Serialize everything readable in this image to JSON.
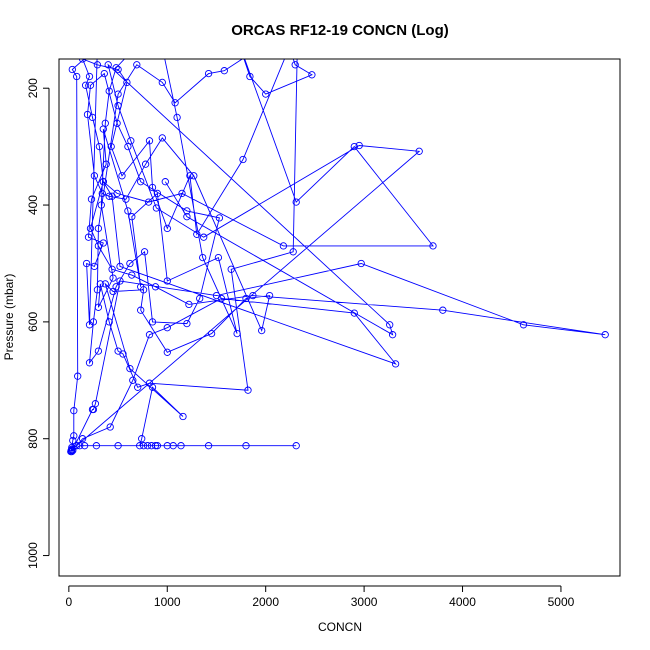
{
  "chart_data": {
    "type": "line",
    "title": "ORCAS RF12-19 CONCN (Log)",
    "xlabel": "CONCN",
    "ylabel": "Pressure (mbar)",
    "xlim": [
      -100,
      5600
    ],
    "ylim": [
      1035,
      150
    ],
    "y_reversed": true,
    "x_ticks": [
      0,
      1000,
      2000,
      3000,
      4000,
      5000
    ],
    "x_tick_labels": [
      "0",
      "1000",
      "2000",
      "3000",
      "4000",
      "5000"
    ],
    "y_ticks": [
      200,
      400,
      600,
      800,
      1000
    ],
    "y_tick_labels": [
      "200",
      "400",
      "600",
      "800",
      "1000"
    ],
    "grid": false,
    "line_color": "#0000ff",
    "marker": "open-circle",
    "series": [
      {
        "points": [
          [
            20,
            822
          ],
          [
            25,
            820
          ],
          [
            30,
            818
          ],
          [
            40,
            803
          ],
          [
            50,
            795
          ],
          [
            50,
            752
          ],
          [
            90,
            693
          ],
          [
            80,
            180
          ],
          [
            35,
            168
          ],
          [
            290,
            130
          ],
          [
            210,
            605
          ],
          [
            180,
            500
          ],
          [
            260,
            505
          ],
          [
            350,
            465
          ],
          [
            200,
            455
          ],
          [
            230,
            390
          ],
          [
            380,
            330
          ],
          [
            350,
            270
          ],
          [
            600,
            410
          ],
          [
            730,
            540
          ],
          [
            640,
            420
          ],
          [
            900,
            380
          ],
          [
            1000,
            530
          ],
          [
            1520,
            490
          ],
          [
            1710,
            620
          ],
          [
            1360,
            490
          ],
          [
            1100,
            250
          ],
          [
            950,
            130
          ],
          [
            650,
            135
          ],
          [
            480,
            165
          ],
          [
            410,
            205
          ],
          [
            370,
            260
          ],
          [
            330,
            400
          ],
          [
            450,
            525
          ],
          [
            300,
            575
          ],
          [
            320,
            535
          ],
          [
            410,
            600
          ],
          [
            500,
            650
          ],
          [
            550,
            655
          ],
          [
            700,
            712
          ],
          [
            820,
            705
          ],
          [
            1820,
            717
          ],
          [
            1650,
            510
          ],
          [
            2280,
            480
          ],
          [
            2320,
            140
          ],
          [
            1900,
            135
          ],
          [
            1580,
            170
          ],
          [
            1420,
            175
          ],
          [
            1080,
            225
          ],
          [
            950,
            190
          ],
          [
            690,
            160
          ],
          [
            500,
            210
          ],
          [
            300,
            440
          ],
          [
            290,
            545
          ],
          [
            250,
            600
          ],
          [
            210,
            670
          ],
          [
            300,
            650
          ],
          [
            480,
            540
          ],
          [
            620,
            500
          ],
          [
            770,
            480
          ],
          [
            850,
            600
          ],
          [
            1200,
            603
          ],
          [
            1330,
            560
          ],
          [
            1530,
            422
          ],
          [
            1200,
            410
          ],
          [
            730,
            360
          ],
          [
            600,
            300
          ],
          [
            490,
            260
          ],
          [
            360,
            175
          ],
          [
            220,
            195
          ],
          [
            190,
            245
          ],
          [
            260,
            350
          ],
          [
            340,
            380
          ],
          [
            410,
            385
          ],
          [
            580,
            390
          ],
          [
            780,
            330
          ],
          [
            950,
            285
          ],
          [
            1270,
            350
          ],
          [
            1960,
            615
          ],
          [
            2040,
            555
          ],
          [
            1800,
            560
          ],
          [
            1450,
            620
          ],
          [
            1000,
            652
          ],
          [
            730,
            580
          ],
          [
            760,
            545
          ],
          [
            450,
            548
          ],
          [
            370,
            535
          ],
          [
            620,
            680
          ],
          [
            1160,
            762
          ],
          [
            850,
            712
          ],
          [
            740,
            800
          ],
          [
            720,
            812
          ],
          [
            760,
            812
          ],
          [
            800,
            812
          ],
          [
            840,
            812
          ],
          [
            880,
            812
          ],
          [
            1000,
            812
          ],
          [
            1060,
            812
          ],
          [
            1140,
            812
          ],
          [
            1420,
            812
          ],
          [
            2310,
            812
          ],
          [
            1800,
            812
          ],
          [
            900,
            812
          ],
          [
            500,
            812
          ],
          [
            280,
            812
          ],
          [
            160,
            812
          ],
          [
            110,
            812
          ],
          [
            40,
            820
          ],
          [
            30,
            822
          ],
          [
            240,
            750
          ],
          [
            250,
            750
          ],
          [
            270,
            740
          ],
          [
            520,
            530
          ],
          [
            1500,
            555
          ],
          [
            2970,
            500
          ],
          [
            4620,
            605
          ],
          [
            5450,
            622
          ],
          [
            3800,
            580
          ],
          [
            1870,
            555
          ],
          [
            1220,
            570
          ],
          [
            880,
            540
          ],
          [
            640,
            520
          ],
          [
            440,
            510
          ],
          [
            300,
            470
          ],
          [
            220,
            440
          ],
          [
            350,
            360
          ],
          [
            490,
            380
          ],
          [
            810,
            395
          ],
          [
            1150,
            380
          ],
          [
            2180,
            470
          ],
          [
            3700,
            470
          ],
          [
            2900,
            300
          ],
          [
            2310,
            395
          ],
          [
            1680,
            100
          ],
          [
            1840,
            180
          ],
          [
            2000,
            210
          ],
          [
            2470,
            177
          ],
          [
            2300,
            160
          ],
          [
            2240,
            130
          ],
          [
            1770,
            322
          ],
          [
            1300,
            450
          ],
          [
            1230,
            350
          ],
          [
            1000,
            440
          ],
          [
            850,
            370
          ],
          [
            820,
            290
          ],
          [
            540,
            350
          ],
          [
            430,
            300
          ],
          [
            590,
            190
          ],
          [
            500,
            168
          ],
          [
            290,
            160
          ],
          [
            140,
            150
          ],
          [
            210,
            180
          ],
          [
            170,
            195
          ],
          [
            240,
            250
          ],
          [
            310,
            300
          ],
          [
            350,
            360
          ],
          [
            440,
            385
          ],
          [
            520,
            505
          ],
          [
            3320,
            672
          ],
          [
            2900,
            585
          ],
          [
            1550,
            560
          ],
          [
            1000,
            610
          ],
          [
            820,
            622
          ],
          [
            650,
            700
          ],
          [
            420,
            780
          ],
          [
            140,
            800
          ],
          [
            80,
            812
          ],
          [
            30,
            815
          ],
          [
            25,
            820
          ],
          [
            3560,
            308
          ],
          [
            2950,
            298
          ],
          [
            1370,
            455
          ],
          [
            890,
            405
          ],
          [
            630,
            290
          ],
          [
            500,
            230
          ],
          [
            400,
            160
          ],
          [
            3260,
            605
          ],
          [
            3290,
            622
          ],
          [
            1200,
            420
          ],
          [
            980,
            360
          ]
        ]
      }
    ]
  }
}
